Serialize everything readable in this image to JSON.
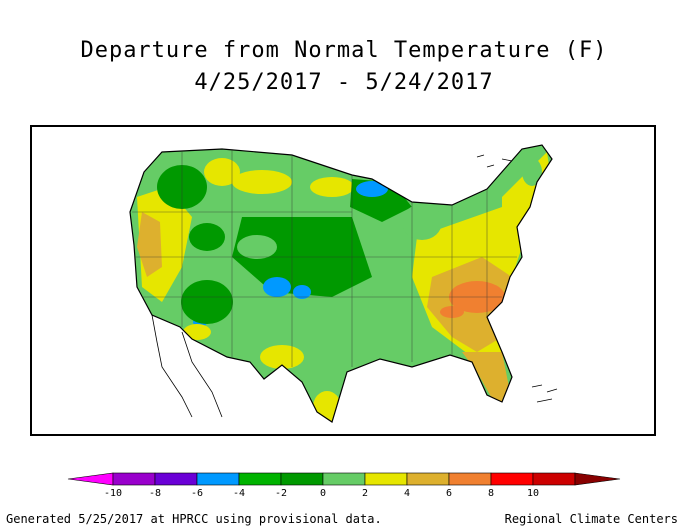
{
  "title": "Departure from Normal Temperature (F)",
  "date_range": "4/25/2017 - 5/24/2017",
  "legend": {
    "colors": [
      "#ff00ff",
      "#9900cc",
      "#6a00d6",
      "#0099ff",
      "#00b300",
      "#009900",
      "#66cc66",
      "#e6e600",
      "#ddb02e",
      "#f08030",
      "#ff0000",
      "#cc0000",
      "#880000"
    ],
    "tick_labels": [
      "-10",
      "-8",
      "-6",
      "-4",
      "-2",
      "0",
      "2",
      "4",
      "6",
      "8",
      "10"
    ]
  },
  "footer": {
    "left": "Generated 5/25/2017 at HPRCC using provisional data.",
    "right": "Regional Climate Centers"
  }
}
